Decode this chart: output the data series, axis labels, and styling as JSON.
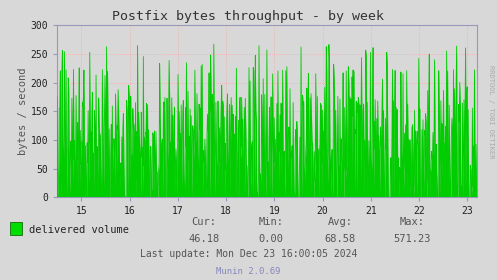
{
  "title": "Postfix bytes throughput - by week",
  "ylabel": "bytes / second",
  "xlabel_ticks": [
    15,
    16,
    17,
    18,
    19,
    20,
    21,
    22,
    23
  ],
  "xlim": [
    14.5,
    23.2
  ],
  "ylim": [
    0,
    300
  ],
  "yticks": [
    0,
    50,
    100,
    150,
    200,
    250,
    300
  ],
  "bg_color": "#d8d8d8",
  "plot_bg_color": "#d8d8d8",
  "grid_h_color": "#ff9999",
  "grid_v_color": "#ff9999",
  "line_color": "#00cc00",
  "fill_color": "#00cc00",
  "legend_label": "delivered volume",
  "legend_color": "#00dd00",
  "cur": "46.18",
  "min": "0.00",
  "avg": "68.58",
  "max": "571.23",
  "last_update": "Last update: Mon Dec 23 16:00:05 2024",
  "munin_version": "Munin 2.0.69",
  "right_label": "RRDTOOL / TOBI OETIKER",
  "title_color": "#333333",
  "axis_color": "#9999bb",
  "tick_color": "#9999bb",
  "label_color": "#555555",
  "seed": 12345
}
